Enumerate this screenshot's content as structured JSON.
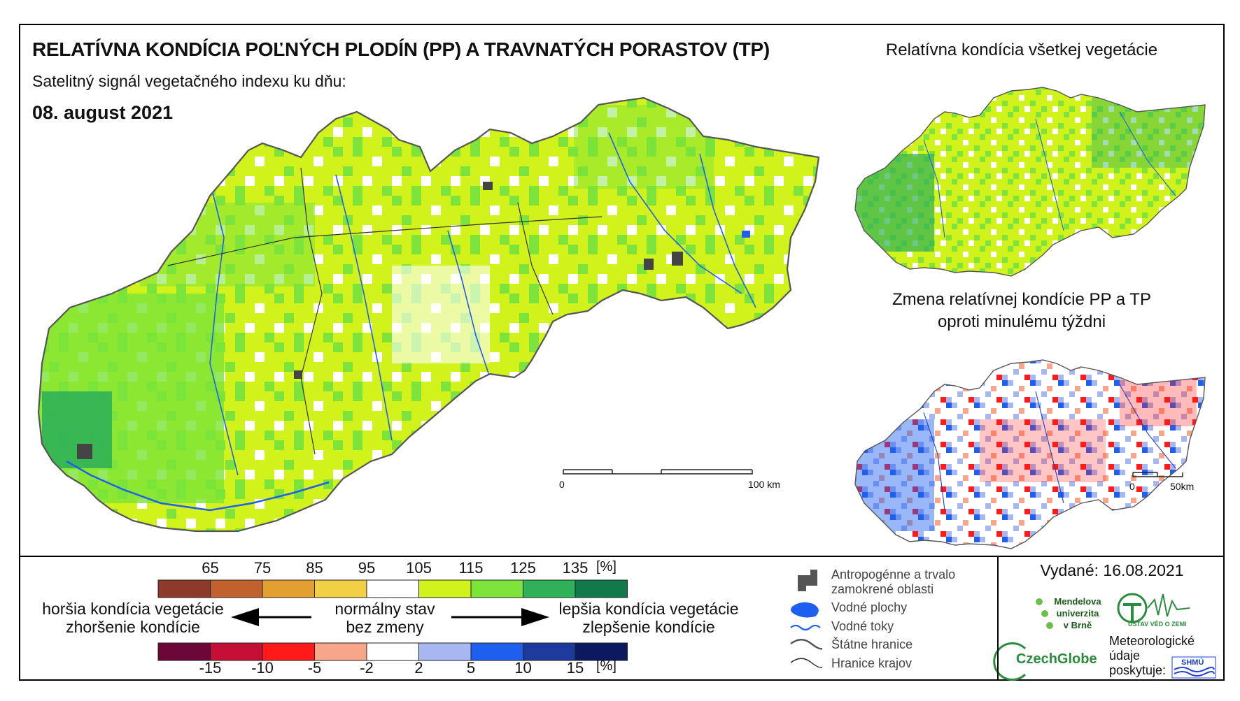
{
  "header": {
    "title": "RELATÍVNA KONDÍCIA POĽNÝCH PLODÍN (PP) A TRAVNATÝCH PORASTOV (TP)",
    "subtitle": "Satelitný signál vegetačného indexu ku dňu:",
    "date": "08. august 2021"
  },
  "insets": {
    "all_vegetation_title": "Relatívna kondícia všetkej vegetácie",
    "change_title_line1": "Zmena relatívnej kondície PP a TP",
    "change_title_line2": "oproti minulému týždni"
  },
  "scalebars": {
    "main": {
      "start": "0",
      "end": "100 km"
    },
    "inset": {
      "start": "0",
      "end": "50km"
    }
  },
  "legend_condition": {
    "ticks": [
      "65",
      "75",
      "85",
      "95",
      "105",
      "115",
      "125",
      "135"
    ],
    "unit": "[%]",
    "colors": [
      "#8b3a2b",
      "#c0612e",
      "#e3a02f",
      "#f2d046",
      "#ffffff",
      "#d2f21c",
      "#7be33a",
      "#2fb157",
      "#127a4a"
    ]
  },
  "legend_change": {
    "ticks": [
      "-15",
      "-10",
      "-5",
      "-2",
      "2",
      "5",
      "10",
      "15"
    ],
    "unit": "[%]",
    "colors": [
      "#6b0838",
      "#c50f37",
      "#ff1a1a",
      "#f7a68a",
      "#ffffff",
      "#a7b8f0",
      "#1f5ff0",
      "#1c3a9c",
      "#0b1a5e"
    ]
  },
  "captions": {
    "worse_line1": "horšia kondícia vegetácie",
    "worse_line2": "zhoršenie kondície",
    "normal_line1": "normálny stav",
    "normal_line2": "bez zmeny",
    "better_line1": "lepšia kondícia vegetácie",
    "better_line2": "zlepšenie kondície"
  },
  "map_key": {
    "urban_line1": "Antropogénne a trvalo",
    "urban_line2": "zamokrené oblasti",
    "water_bodies": "Vodné plochy",
    "rivers": "Vodné toky",
    "state_border": "Štátne hranice",
    "regions": "Hranice krajov"
  },
  "footer": {
    "issued": "Vydané: 16.08.2021",
    "mendel": [
      "Mendelova",
      "univerzita",
      "v Brně"
    ],
    "czechglobe": "CzechGlobe",
    "institute": "ÚSTAV VĚD O ZEMI",
    "meteo": [
      "Meteorologické",
      "údaje",
      "poskytuje:"
    ],
    "shmu": "SHMÚ"
  },
  "colors": {
    "map_base": "#d2f21c",
    "map_green": "#7be33a",
    "map_dark": "#2fb157",
    "urban": "#444444",
    "water": "#1f5ff0"
  }
}
